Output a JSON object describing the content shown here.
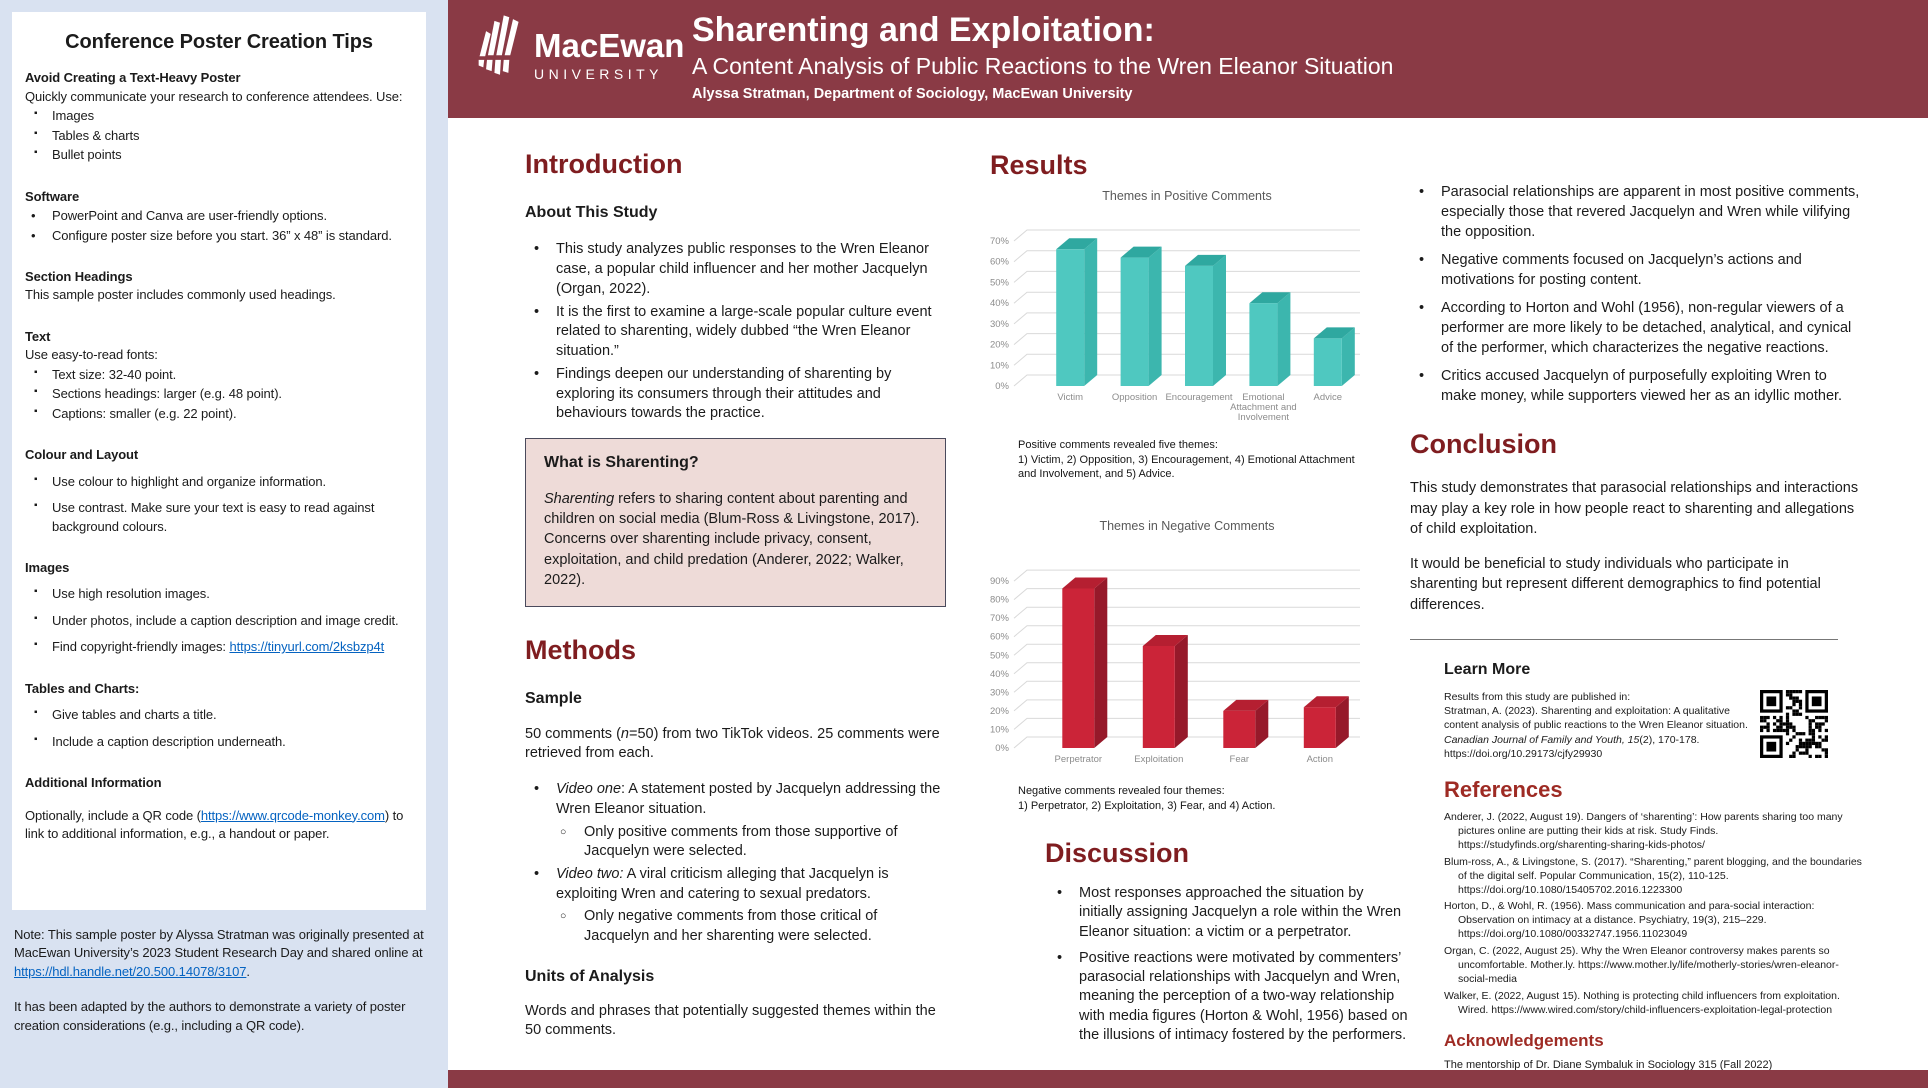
{
  "colors": {
    "header_maroon": "#8a3a45",
    "heading_red": "#7f1d20",
    "ref_heading_red": "#9e2b24",
    "link_blue": "#0563c1",
    "sidebar_bg": "#d9e2f1",
    "pink_box_bg": "#eedbd8",
    "teal_bar": "#4fc8c0",
    "red_bar": "#cb2438"
  },
  "sidebar": {
    "title": "Conference Poster Creation Tips",
    "sections": [
      {
        "heading": "Avoid Creating a Text-Heavy Poster",
        "lead": "Quickly communicate your research to conference attendees. Use:",
        "items": [
          "Images",
          "Tables & charts",
          "Bullet points"
        ]
      },
      {
        "heading": "Software",
        "items": [
          "PowerPoint and Canva are user-friendly options.",
          "Configure poster size before you start. 36” x 48” is standard."
        ]
      },
      {
        "heading": "Section Headings",
        "lead": "This sample poster includes commonly used headings."
      },
      {
        "heading": "Text",
        "lead": "Use easy-to-read fonts:",
        "items": [
          "Text size: 32-40 point.",
          "Sections headings: larger (e.g. 48 point).",
          "Captions: smaller (e.g. 22 point)."
        ]
      },
      {
        "heading": "Colour and Layout",
        "items": [
          "Use colour to highlight and organize information.",
          "Use contrast. Make sure your text is easy to read against background colours."
        ]
      },
      {
        "heading": "Images",
        "items": [
          "Use high resolution images.",
          "Under photos, include a caption description and image credit."
        ],
        "link_item": {
          "text": "Find copyright-friendly images: ",
          "link": "https://tinyurl.com/2ksbzp4t"
        }
      },
      {
        "heading": "Tables and Charts:",
        "items": [
          "Give tables and charts a title.",
          "Include a caption description underneath."
        ]
      },
      {
        "heading": "Additional Information",
        "para": {
          "pre": "Optionally, include a QR code (",
          "link": "https://www.qrcode-monkey.com",
          "post": ") to link to additional information, e.g., a handout or paper."
        }
      }
    ],
    "note": {
      "p1_pre": "Note: This sample poster by Alyssa Stratman was originally presented at MacEwan University’s 2023 Student Research Day and shared online at ",
      "p1_link": "https://hdl.handle.net/20.500.14078/3107",
      "p1_post": ".",
      "p2": "It has been adapted by the authors to demonstrate a variety of poster creation considerations (e.g., including a QR code)."
    }
  },
  "header": {
    "university": "MacEwan",
    "university_sub": "UNIVERSITY",
    "title": "Sharenting and Exploitation:",
    "subtitle": "A Content Analysis of Public Reactions to the Wren Eleanor Situation",
    "byline": "Alyssa Stratman, Department of Sociology, MacEwan University"
  },
  "intro": {
    "heading": "Introduction",
    "sub": "About This Study",
    "bullets": [
      "This study analyzes public responses to the Wren Eleanor case, a popular child influencer and her mother Jacquelyn (Organ, 2022).",
      "It is the first to examine a large-scale popular culture event related to sharenting, widely dubbed “the Wren Eleanor situation.”",
      "Findings deepen our understanding of sharenting by exploring its consumers through their attitudes and behaviours towards the practice."
    ],
    "box": {
      "heading": "What is Sharenting?",
      "lead": "Sharenting",
      "body": " refers to sharing content about parenting and children on social media (Blum-Ross & Livingstone, 2017). Concerns over sharenting include privacy, consent, exploitation, and child predation (Anderer, 2022; Walker, 2022)."
    }
  },
  "methods": {
    "heading": "Methods",
    "sample_heading": "Sample",
    "sample": {
      "pre": "50 comments (",
      "n": "n",
      "post": "=50) from two TikTok videos. 25 comments were retrieved from each."
    },
    "video_one": {
      "lead": "Video one",
      "text": ": A statement posted by Jacquelyn addressing the Wren Eleanor situation.",
      "sub": "Only positive comments from those supportive of Jacquelyn were selected."
    },
    "video_two": {
      "lead": "Video two:",
      "text": " A viral criticism alleging that Jacquelyn is exploiting Wren and catering to sexual predators.",
      "sub": "Only negative comments from those critical of Jacquelyn and her sharenting were selected."
    },
    "units_heading": "Units of Analysis",
    "units_text": "Words and phrases that potentially suggested themes within the 50 comments."
  },
  "results": {
    "heading": "Results",
    "caption_positive": {
      "line1": "Positive comments revealed five themes:",
      "line2": "1) Victim, 2) Opposition, 3) Encouragement, 4) Emotional Attachment and Involvement, and 5) Advice."
    },
    "caption_negative": {
      "line1": "Negative comments revealed four themes:",
      "line2": "1) Perpetrator, 2) Exploitation, 3) Fear, and 4) Action."
    }
  },
  "chart_data": [
    {
      "type": "bar",
      "title": "Themes in Positive Comments",
      "categories": [
        "Victim",
        "Opposition",
        "Encouragement",
        "Emotional\nAttachment and\nInvolvement",
        "Advice"
      ],
      "values": [
        66,
        62,
        58,
        40,
        23
      ],
      "ylim": [
        0,
        70
      ],
      "tick_step": 10,
      "tick_format": "percent",
      "grid": true,
      "legend": false,
      "colors": {
        "front": "#4fc8c0",
        "top": "#2fa8a0",
        "side": "#3cb6ae"
      }
    },
    {
      "type": "bar",
      "title": "Themes in Negative Comments",
      "categories": [
        "Perpetrator",
        "Exploitation",
        "Fear",
        "Action"
      ],
      "values": [
        86,
        55,
        20,
        22
      ],
      "ylim": [
        0,
        90
      ],
      "tick_step": 10,
      "tick_format": "percent",
      "grid": true,
      "legend": false,
      "colors": {
        "front": "#cb2438",
        "top": "#b51f31",
        "side": "#96192a"
      }
    }
  ],
  "discussion": {
    "heading": "Discussion",
    "bullets": [
      "Most responses approached the situation by initially assigning Jacquelyn a role within the Wren Eleanor situation: a victim or a perpetrator.",
      "Positive reactions were motivated by commenters’ parasocial relationships with Jacquelyn and Wren, meaning the perception of a two-way relationship with media figures (Horton & Wohl, 1956) based on the illusions of intimacy fostered by the performers."
    ]
  },
  "takeaways": {
    "bullets": [
      "Parasocial relationships are apparent in most positive comments, especially those that revered Jacquelyn and Wren while vilifying the opposition.",
      "Negative comments focused on Jacquelyn’s actions and motivations for posting content.",
      "According to Horton and Wohl (1956), non-regular viewers of a performer are more likely to be detached, analytical, and cynical of the performer, which characterizes the negative reactions.",
      "Critics accused Jacquelyn of purposefully exploiting Wren to make money, while supporters viewed her as an idyllic mother."
    ]
  },
  "conclusion": {
    "heading": "Conclusion",
    "p1": "This study demonstrates that parasocial relationships and interactions may play a key role in how people react to sharenting and allegations of child exploitation.",
    "p2": "It would be beneficial to study individuals who participate in sharenting but represent different demographics to find potential differences."
  },
  "learn_more": {
    "heading": "Learn More",
    "intro": "Results from this study are published in:",
    "citation_pre": "Stratman, A. (2023). Sharenting and exploitation: A qualitative content analysis of public reactions to the Wren Eleanor situation. ",
    "citation_journal": "Canadian Journal of Family and Youth, 15",
    "citation_post": "(2), 170-178.",
    "doi": "https://doi.org/10.29173/cjfy29930"
  },
  "references": {
    "heading": "References",
    "items": [
      "Anderer, J. (2022, August 19). Dangers of ‘sharenting’: How parents sharing too many pictures online are putting their kids at risk. Study Finds. https://studyfinds.org/sharenting-sharing-kids-photos/",
      "Blum-ross, A., & Livingstone, S. (2017). “Sharenting,” parent blogging, and the boundaries of the digital self. Popular Communication, 15(2), 110-125. https://doi.org/10.1080/15405702.2016.1223300",
      "Horton, D., & Wohl, R. (1956). Mass communication and para-social interaction: Observation on intimacy at a distance. Psychiatry, 19(3), 215–229. https://doi.org/10.1080/00332747.1956.11023049",
      "Organ, C. (2022, August 25). Why the Wren Eleanor controversy makes parents so uncomfortable. Mother.ly. https://www.mother.ly/life/motherly-stories/wren-eleanor-social-media",
      "Walker, E. (2022, August 15). Nothing is protecting child influencers from exploitation. Wired. https://www.wired.com/story/child-influencers-exploitation-legal-protection"
    ]
  },
  "acknowledgements": {
    "heading": "Acknowledgements",
    "text": "The mentorship of Dr. Diane Symbaluk in Sociology 315 (Fall 2022)"
  }
}
